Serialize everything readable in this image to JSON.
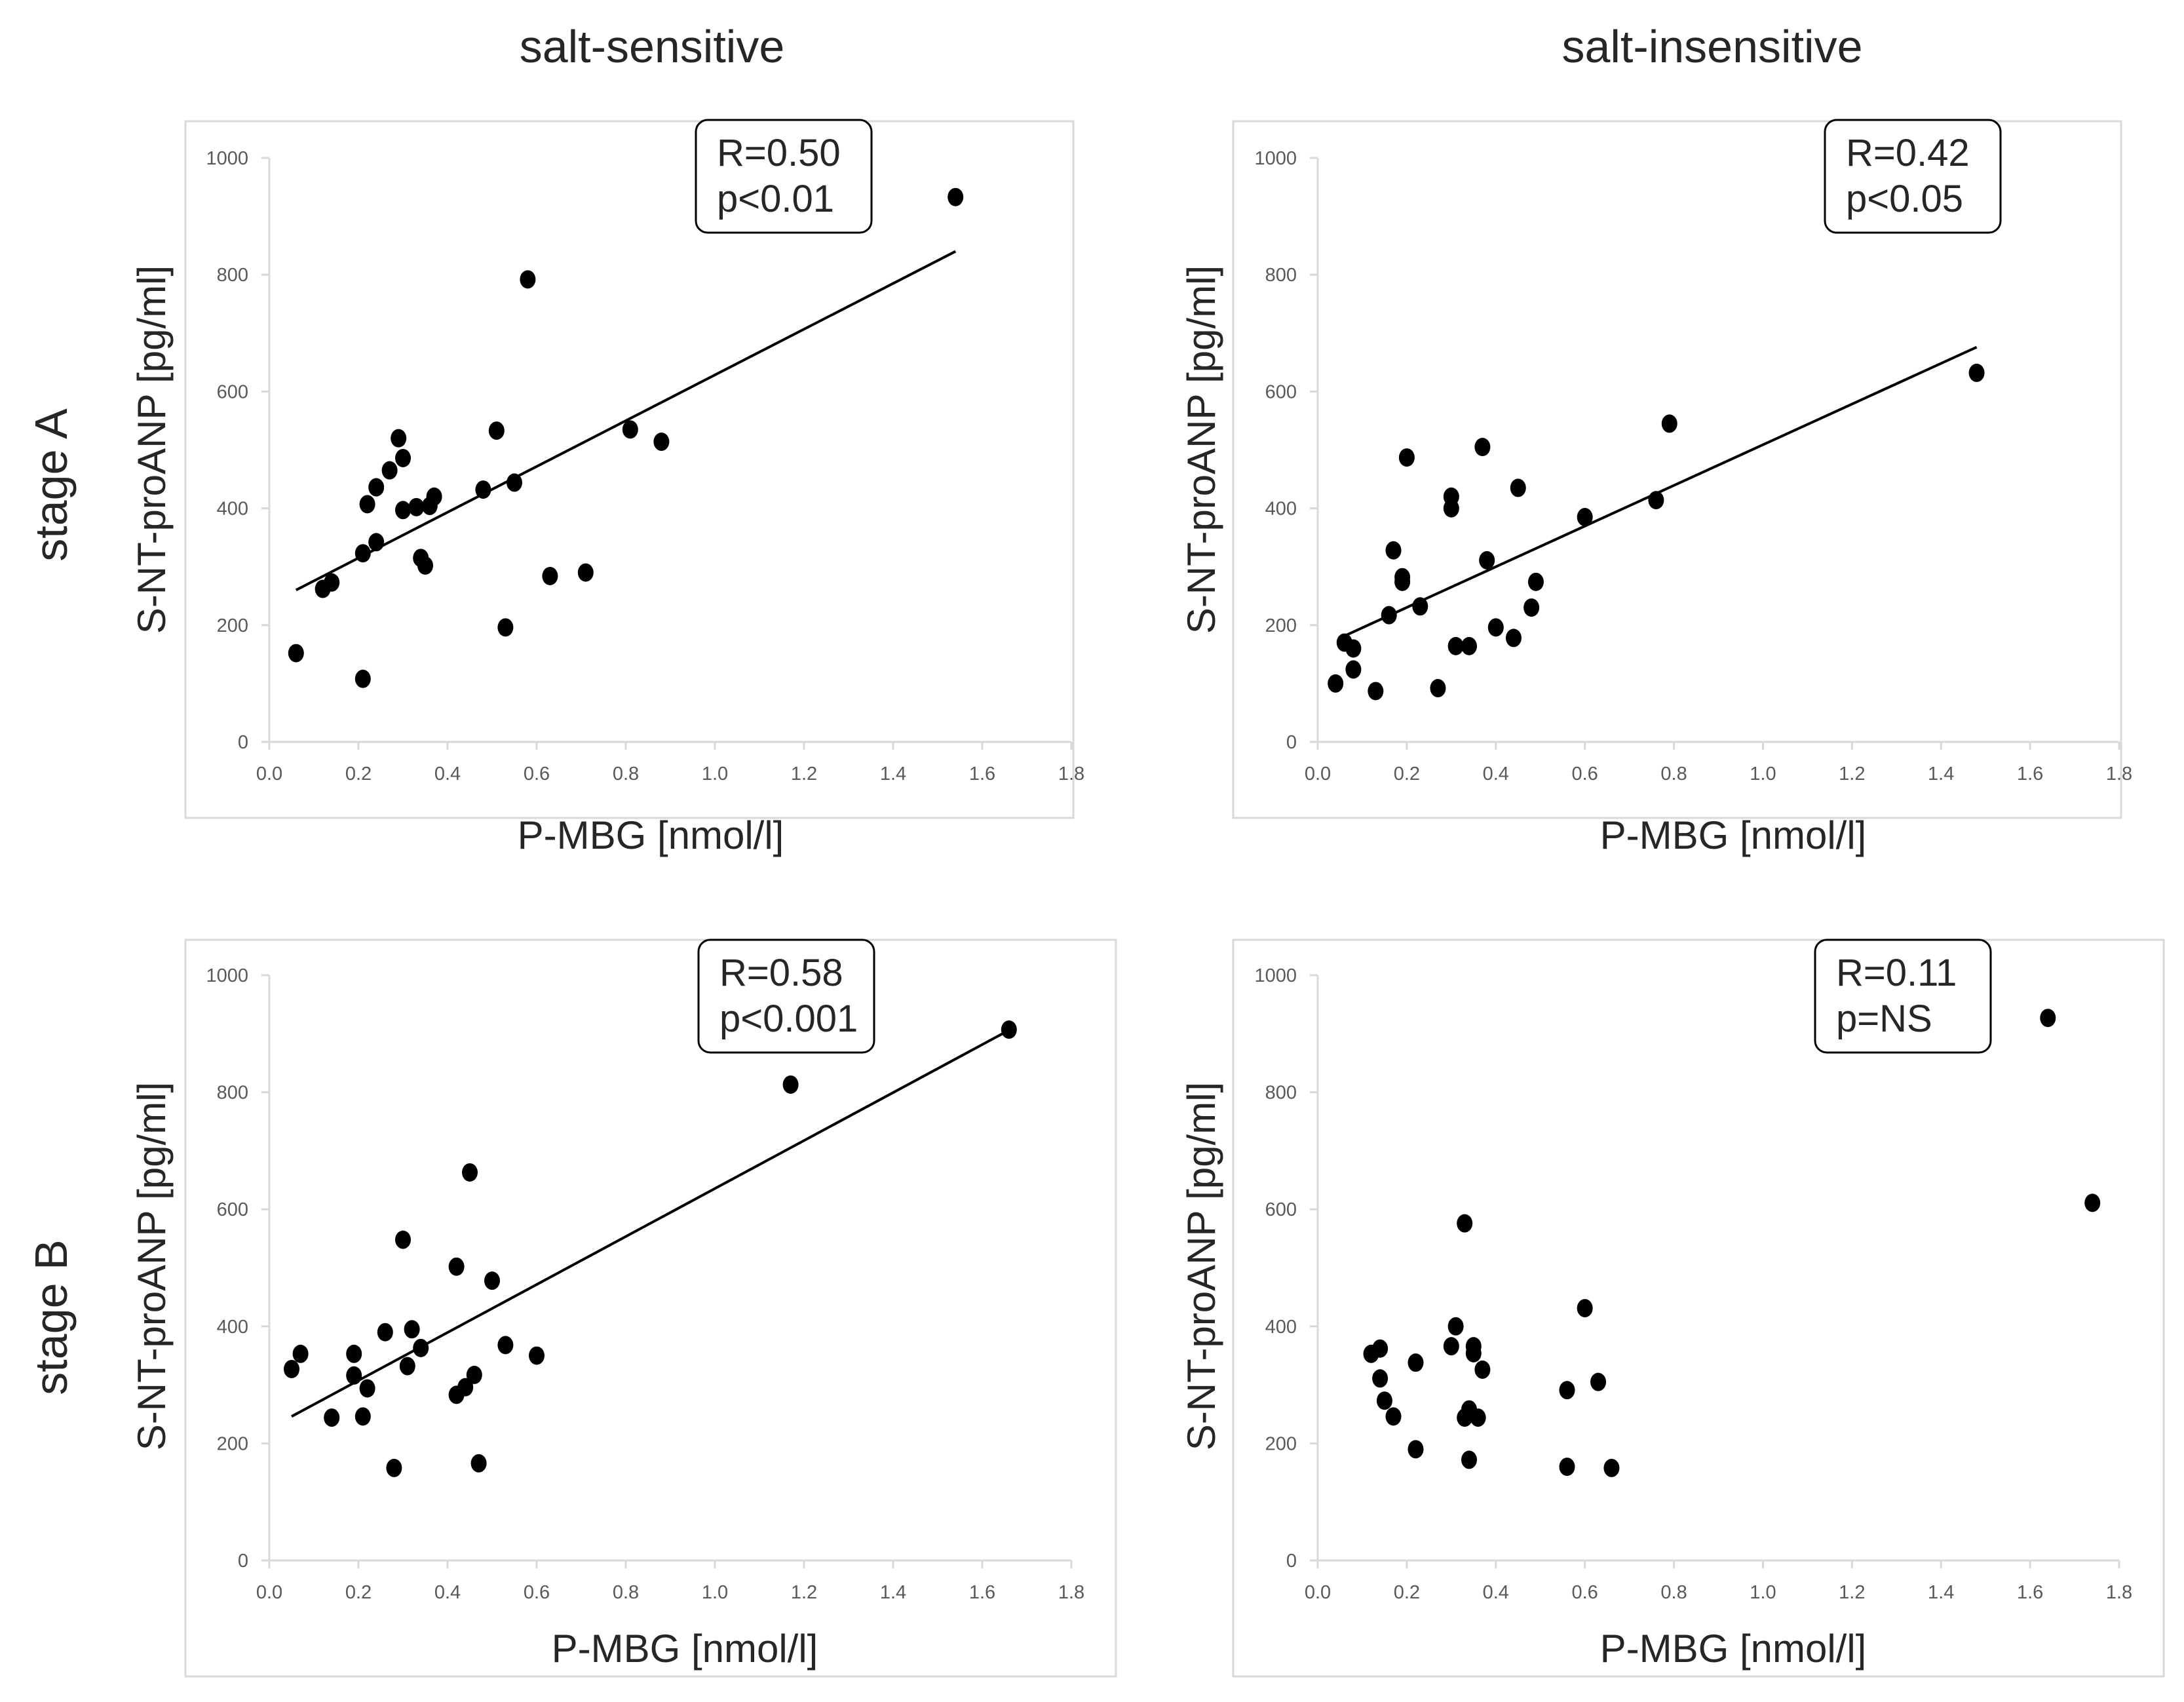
{
  "column_titles": [
    "salt-sensitive",
    "salt-insensitive"
  ],
  "row_titles": [
    "stage A",
    "stage B"
  ],
  "colors": {
    "background": "#ffffff",
    "point": "#000000",
    "axis": "#d9d9d9",
    "tick_label": "#595959",
    "frame": "#d9d9d9",
    "text": "#262626"
  },
  "chart_data": [
    {
      "type": "scatter",
      "panel": "stage A / salt-sensitive",
      "xlabel": "P-MBG [nmol/l]",
      "ylabel": "S-NT-proANP [pg/ml]",
      "xlim": [
        0,
        1.8
      ],
      "ylim": [
        0,
        1000
      ],
      "xticks": [
        "0.0",
        "0.2",
        "0.4",
        "0.6",
        "0.8",
        "1.0",
        "1.2",
        "1.4",
        "1.6",
        "1.8"
      ],
      "yticks": [
        "0",
        "200",
        "400",
        "600",
        "800",
        "1000"
      ],
      "annotation": [
        "R=0.50",
        "p<0.01"
      ],
      "trendline": {
        "x": [
          0.06,
          1.54
        ],
        "y": [
          260,
          840
        ]
      },
      "points": [
        [
          0.06,
          152
        ],
        [
          0.12,
          262
        ],
        [
          0.14,
          273
        ],
        [
          0.21,
          108
        ],
        [
          0.21,
          323
        ],
        [
          0.22,
          407
        ],
        [
          0.24,
          342
        ],
        [
          0.24,
          436
        ],
        [
          0.27,
          465
        ],
        [
          0.29,
          520
        ],
        [
          0.3,
          397
        ],
        [
          0.3,
          486
        ],
        [
          0.33,
          402
        ],
        [
          0.34,
          315
        ],
        [
          0.35,
          302
        ],
        [
          0.36,
          404
        ],
        [
          0.37,
          420
        ],
        [
          0.48,
          432
        ],
        [
          0.51,
          533
        ],
        [
          0.53,
          196
        ],
        [
          0.55,
          444
        ],
        [
          0.58,
          792
        ],
        [
          0.63,
          284
        ],
        [
          0.71,
          290
        ],
        [
          0.81,
          535
        ],
        [
          0.88,
          514
        ],
        [
          1.54,
          933
        ]
      ]
    },
    {
      "type": "scatter",
      "panel": "stage A / salt-insensitive",
      "xlabel": "P-MBG [nmol/l]",
      "ylabel": "S-NT-proANP [pg/ml]",
      "xlim": [
        0,
        1.8
      ],
      "ylim": [
        0,
        1000
      ],
      "xticks": [
        "0.0",
        "0.2",
        "0.4",
        "0.6",
        "0.8",
        "1.0",
        "1.2",
        "1.4",
        "1.6",
        "1.8"
      ],
      "yticks": [
        "0",
        "200",
        "400",
        "600",
        "800",
        "1000"
      ],
      "annotation": [
        "R=0.42",
        "p<0.05"
      ],
      "trendline": {
        "x": [
          0.05,
          1.48
        ],
        "y": [
          178,
          676
        ]
      },
      "points": [
        [
          0.04,
          100
        ],
        [
          0.06,
          170
        ],
        [
          0.08,
          124
        ],
        [
          0.08,
          160
        ],
        [
          0.13,
          87
        ],
        [
          0.16,
          217
        ],
        [
          0.17,
          328
        ],
        [
          0.19,
          282
        ],
        [
          0.19,
          274
        ],
        [
          0.2,
          487
        ],
        [
          0.23,
          232
        ],
        [
          0.27,
          92
        ],
        [
          0.3,
          400
        ],
        [
          0.3,
          420
        ],
        [
          0.31,
          164
        ],
        [
          0.34,
          164
        ],
        [
          0.37,
          505
        ],
        [
          0.38,
          311
        ],
        [
          0.4,
          196
        ],
        [
          0.44,
          178
        ],
        [
          0.45,
          435
        ],
        [
          0.48,
          230
        ],
        [
          0.49,
          274
        ],
        [
          0.6,
          385
        ],
        [
          0.76,
          414
        ],
        [
          0.79,
          545
        ],
        [
          1.48,
          632
        ]
      ]
    },
    {
      "type": "scatter",
      "panel": "stage B / salt-sensitive",
      "xlabel": "P-MBG [nmol/l]",
      "ylabel": "S-NT-proANP [pg/ml]",
      "xlim": [
        0,
        1.8
      ],
      "ylim": [
        0,
        1000
      ],
      "xticks": [
        "0.0",
        "0.2",
        "0.4",
        "0.6",
        "0.8",
        "1.0",
        "1.2",
        "1.4",
        "1.6",
        "1.8"
      ],
      "yticks": [
        "0",
        "200",
        "400",
        "600",
        "800",
        "1000"
      ],
      "annotation": [
        "R=0.58",
        "p<0.001"
      ],
      "trendline": {
        "x": [
          0.05,
          1.66
        ],
        "y": [
          246,
          906
        ]
      },
      "points": [
        [
          0.05,
          327
        ],
        [
          0.07,
          353
        ],
        [
          0.14,
          244
        ],
        [
          0.19,
          353
        ],
        [
          0.19,
          316
        ],
        [
          0.21,
          246
        ],
        [
          0.22,
          294
        ],
        [
          0.26,
          390
        ],
        [
          0.28,
          158
        ],
        [
          0.3,
          548
        ],
        [
          0.31,
          332
        ],
        [
          0.32,
          395
        ],
        [
          0.34,
          363
        ],
        [
          0.42,
          283
        ],
        [
          0.42,
          502
        ],
        [
          0.44,
          296
        ],
        [
          0.45,
          663
        ],
        [
          0.46,
          317
        ],
        [
          0.47,
          166
        ],
        [
          0.5,
          478
        ],
        [
          0.53,
          368
        ],
        [
          0.6,
          350
        ],
        [
          1.17,
          813
        ],
        [
          1.66,
          907
        ]
      ]
    },
    {
      "type": "scatter",
      "panel": "stage B / salt-insensitive",
      "xlabel": "P-MBG [nmol/l]",
      "ylabel": "S-NT-proANP [pg/ml]",
      "xlim": [
        0,
        1.8
      ],
      "ylim": [
        0,
        1000
      ],
      "xticks": [
        "0.0",
        "0.2",
        "0.4",
        "0.6",
        "0.8",
        "1.0",
        "1.2",
        "1.4",
        "1.6",
        "1.8"
      ],
      "yticks": [
        "0",
        "200",
        "400",
        "600",
        "800",
        "1000"
      ],
      "annotation": [
        "R=0.11",
        "p=NS"
      ],
      "trendline": null,
      "points": [
        [
          0.12,
          353
        ],
        [
          0.14,
          362
        ],
        [
          0.14,
          311
        ],
        [
          0.15,
          273
        ],
        [
          0.17,
          246
        ],
        [
          0.22,
          338
        ],
        [
          0.22,
          190
        ],
        [
          0.3,
          366
        ],
        [
          0.31,
          400
        ],
        [
          0.33,
          244
        ],
        [
          0.33,
          576
        ],
        [
          0.34,
          172
        ],
        [
          0.34,
          258
        ],
        [
          0.35,
          354
        ],
        [
          0.35,
          366
        ],
        [
          0.36,
          244
        ],
        [
          0.37,
          326
        ],
        [
          0.56,
          160
        ],
        [
          0.56,
          291
        ],
        [
          0.6,
          431
        ],
        [
          0.63,
          305
        ],
        [
          0.66,
          158
        ],
        [
          1.64,
          927
        ],
        [
          1.74,
          611
        ]
      ]
    }
  ]
}
